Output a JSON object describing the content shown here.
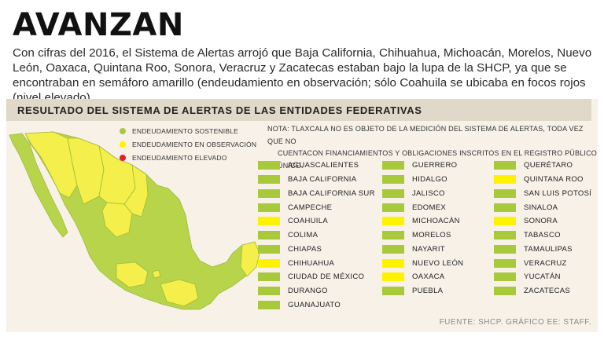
{
  "header": {
    "title": "AVANZAN",
    "intro": "Con cifras del 2016, el Sistema de Alertas arrojó que Baja California, Chihuahua, Michoacán, Morelos, Nuevo León, Oaxaca, Quintana Roo, Sonora, Veracruz y Zacatecas estaban bajo la lupa de la SHCP, ya que se encontraban en semáforo amarillo (endeudamiento en observación; sólo Coahuila se ubicaba en focos rojos (nivel elevado)."
  },
  "panel": {
    "title": "RESULTADO DEL SISTEMA DE ALERTAS DE LAS ENTIDADES FEDERATIVAS",
    "note_line1": "NOTA: TLAXCALA NO ES OBJETO DE LA MEDICIÓN DEL SISTEMA DE ALERTAS, TODA VEZ QUE NO",
    "note_line2": "CUENTACON FINANCIAMIENTOS Y OBLIGACIONES INSCRITOS EN EL REGISTRO PÚBLICO ÚNICO.",
    "source": "FUENTE: SHCP. GRÁFICO EE: STAFF."
  },
  "colors": {
    "sostenible": "#a9c93c",
    "observacion": "#fff200",
    "elevado": "#e0202b",
    "map_sostenible": "#b8d44a",
    "map_observacion": "#f4ef4a"
  },
  "legend": [
    {
      "label": "ENDEUDAMIENTO SOSTENIBLE",
      "status": "sostenible"
    },
    {
      "label": "ENDEUDAMIENTO EN OBSERVACIÓN",
      "status": "observacion"
    },
    {
      "label": "ENDEUDAMIENTO ELEVADO",
      "status": "elevado"
    }
  ],
  "columns": [
    [
      {
        "name": "AGUASCALIENTES",
        "status": "sostenible"
      },
      {
        "name": "BAJA CALIFORNIA",
        "status": "sostenible"
      },
      {
        "name": "BAJA CALIFORNIA SUR",
        "status": "sostenible"
      },
      {
        "name": "CAMPECHE",
        "status": "sostenible"
      },
      {
        "name": "COAHUILA",
        "status": "observacion"
      },
      {
        "name": "COLIMA",
        "status": "sostenible"
      },
      {
        "name": "CHIAPAS",
        "status": "sostenible"
      },
      {
        "name": "CHIHUAHUA",
        "status": "observacion"
      },
      {
        "name": "CIUDAD DE MÉXICO",
        "status": "sostenible"
      },
      {
        "name": "DURANGO",
        "status": "sostenible"
      },
      {
        "name": "GUANAJUATO",
        "status": "sostenible"
      }
    ],
    [
      {
        "name": "GUERRERO",
        "status": "sostenible"
      },
      {
        "name": "HIDALGO",
        "status": "sostenible"
      },
      {
        "name": "JALISCO",
        "status": "sostenible"
      },
      {
        "name": "EDOMEX",
        "status": "sostenible"
      },
      {
        "name": "MICHOACÁN",
        "status": "observacion"
      },
      {
        "name": "MORELOS",
        "status": "sostenible"
      },
      {
        "name": "NAYARIT",
        "status": "sostenible"
      },
      {
        "name": "NUEVO LEÓN",
        "status": "observacion"
      },
      {
        "name": "OAXACA",
        "status": "observacion"
      },
      {
        "name": "PUEBLA",
        "status": "sostenible"
      }
    ],
    [
      {
        "name": "QUERÉTARO",
        "status": "sostenible"
      },
      {
        "name": "QUINTANA ROO",
        "status": "observacion"
      },
      {
        "name": "SAN LUIS POTOSÍ",
        "status": "sostenible"
      },
      {
        "name": "SINALOA",
        "status": "sostenible"
      },
      {
        "name": "SONORA",
        "status": "observacion"
      },
      {
        "name": "TABASCO",
        "status": "sostenible"
      },
      {
        "name": "TAMAULIPAS",
        "status": "sostenible"
      },
      {
        "name": "VERACRUZ",
        "status": "sostenible"
      },
      {
        "name": "YUCATÁN",
        "status": "sostenible"
      },
      {
        "name": "ZACATECAS",
        "status": "sostenible"
      }
    ]
  ]
}
